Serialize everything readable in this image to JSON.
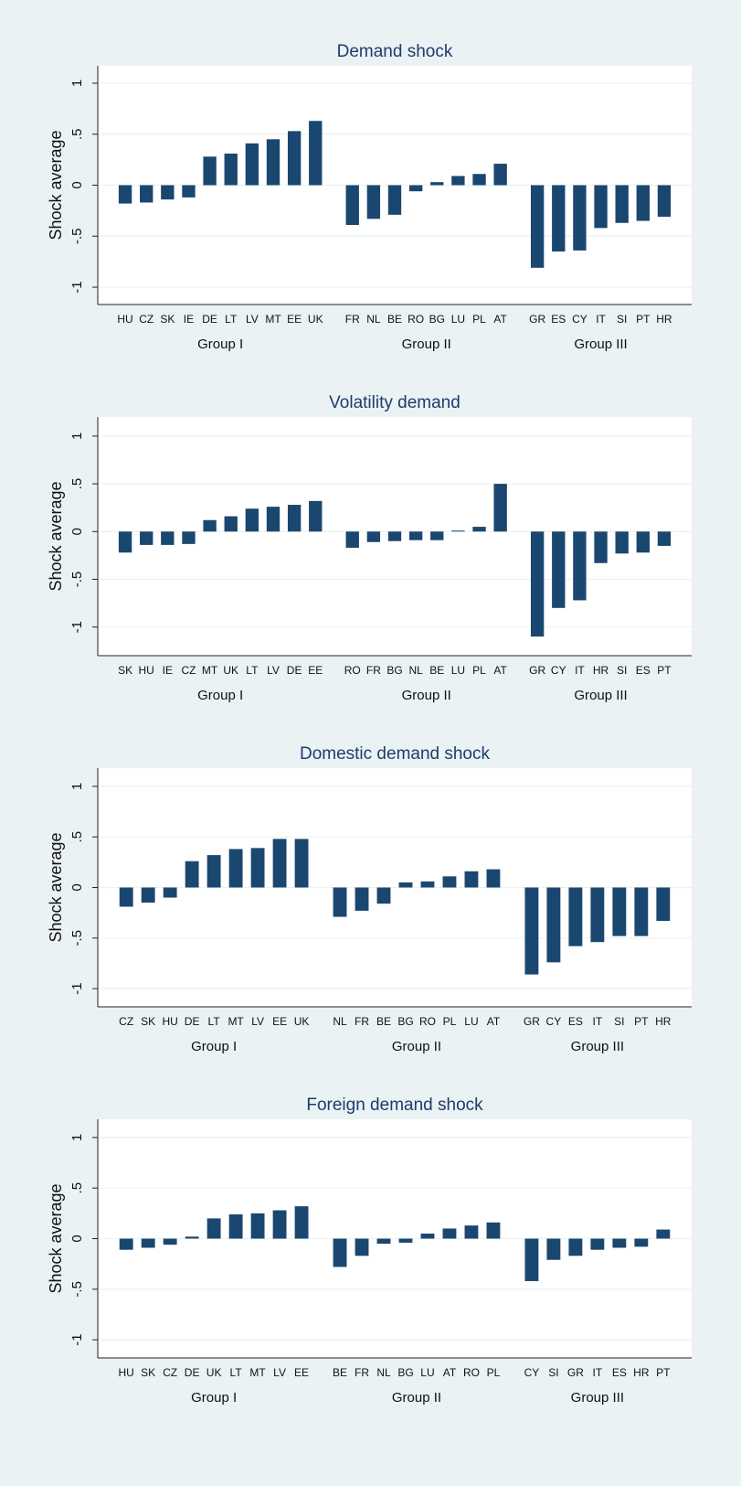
{
  "chart_data": [
    {
      "type": "bar",
      "title": "Demand shock",
      "y_label": "Shock average",
      "color": "#1a476f",
      "grid": true,
      "ylim": [
        -1.17,
        1.17
      ],
      "yticks": [
        -1,
        {
          "value": -0.5,
          "label": "-.5"
        },
        0,
        {
          "value": 0.5,
          "label": ".5"
        },
        1
      ],
      "groups": [
        {
          "name": "Group I",
          "categories": [
            "HU",
            "CZ",
            "SK",
            "IE",
            "DE",
            "LT",
            "LV",
            "MT",
            "EE",
            "UK"
          ],
          "values": [
            -0.18,
            -0.17,
            -0.14,
            -0.12,
            0.28,
            0.31,
            0.41,
            0.45,
            0.53,
            0.63
          ]
        },
        {
          "name": "Group II",
          "categories": [
            "FR",
            "NL",
            "BE",
            "RO",
            "BG",
            "LU",
            "PL",
            "AT"
          ],
          "values": [
            -0.39,
            -0.33,
            -0.29,
            -0.06,
            0.03,
            0.09,
            0.11,
            0.21
          ]
        },
        {
          "name": "Group III",
          "categories": [
            "GR",
            "ES",
            "CY",
            "IT",
            "SI",
            "PT",
            "HR"
          ],
          "values": [
            -0.81,
            -0.65,
            -0.64,
            -0.42,
            -0.37,
            -0.35,
            -0.31
          ]
        }
      ]
    },
    {
      "type": "bar",
      "title": "Volatility demand",
      "y_label": "Shock average",
      "color": "#1a476f",
      "grid": true,
      "ylim": [
        -1.3,
        1.2
      ],
      "yticks": [
        -1,
        {
          "value": -0.5,
          "label": "-.5"
        },
        0,
        {
          "value": 0.5,
          "label": ".5"
        },
        1
      ],
      "groups": [
        {
          "name": "Group I",
          "categories": [
            "SK",
            "HU",
            "IE",
            "CZ",
            "MT",
            "UK",
            "LT",
            "LV",
            "DE",
            "EE"
          ],
          "values": [
            -0.22,
            -0.14,
            -0.14,
            -0.13,
            0.12,
            0.16,
            0.24,
            0.26,
            0.28,
            0.32
          ]
        },
        {
          "name": "Group II",
          "categories": [
            "RO",
            "FR",
            "BG",
            "NL",
            "BE",
            "LU",
            "PL",
            "AT"
          ],
          "values": [
            -0.17,
            -0.11,
            -0.1,
            -0.09,
            -0.09,
            0.01,
            0.05,
            0.5
          ]
        },
        {
          "name": "Group III",
          "categories": [
            "GR",
            "CY",
            "IT",
            "HR",
            "SI",
            "ES",
            "PT"
          ],
          "values": [
            -1.1,
            -0.8,
            -0.72,
            -0.33,
            -0.23,
            -0.22,
            -0.15
          ]
        }
      ]
    },
    {
      "type": "bar",
      "title": "Domestic demand shock",
      "y_label": "Shock average",
      "color": "#1a476f",
      "grid": true,
      "ylim": [
        -1.18,
        1.18
      ],
      "yticks": [
        -1,
        {
          "value": -0.5,
          "label": "-.5"
        },
        0,
        {
          "value": 0.5,
          "label": ".5"
        },
        1
      ],
      "groups": [
        {
          "name": "Group I",
          "categories": [
            "CZ",
            "SK",
            "HU",
            "DE",
            "LT",
            "MT",
            "LV",
            "EE",
            "UK"
          ],
          "values": [
            -0.19,
            -0.15,
            -0.1,
            0.26,
            0.32,
            0.38,
            0.39,
            0.48,
            0.48
          ]
        },
        {
          "name": "Group II",
          "categories": [
            "NL",
            "FR",
            "BE",
            "BG",
            "RO",
            "PL",
            "LU",
            "AT"
          ],
          "values": [
            -0.29,
            -0.23,
            -0.16,
            0.05,
            0.06,
            0.11,
            0.16,
            0.18
          ]
        },
        {
          "name": "Group III",
          "categories": [
            "GR",
            "CY",
            "ES",
            "IT",
            "SI",
            "PT",
            "HR"
          ],
          "values": [
            -0.86,
            -0.74,
            -0.58,
            -0.54,
            -0.48,
            -0.48,
            -0.33
          ]
        }
      ]
    },
    {
      "type": "bar",
      "title": "Foreign demand shock",
      "y_label": "Shock average",
      "color": "#1a476f",
      "grid": true,
      "ylim": [
        -1.18,
        1.18
      ],
      "yticks": [
        -1,
        {
          "value": -0.5,
          "label": "-.5"
        },
        0,
        {
          "value": 0.5,
          "label": ".5"
        },
        1
      ],
      "groups": [
        {
          "name": "Group I",
          "categories": [
            "HU",
            "SK",
            "CZ",
            "DE",
            "UK",
            "LT",
            "MT",
            "LV",
            "EE"
          ],
          "values": [
            -0.11,
            -0.09,
            -0.06,
            0.02,
            0.2,
            0.24,
            0.25,
            0.28,
            0.32
          ]
        },
        {
          "name": "Group II",
          "categories": [
            "BE",
            "FR",
            "NL",
            "BG",
            "LU",
            "AT",
            "RO",
            "PL"
          ],
          "values": [
            -0.28,
            -0.17,
            -0.05,
            -0.04,
            0.05,
            0.1,
            0.13,
            0.16
          ]
        },
        {
          "name": "Group III",
          "categories": [
            "CY",
            "SI",
            "GR",
            "IT",
            "ES",
            "HR",
            "PT"
          ],
          "values": [
            -0.42,
            -0.21,
            -0.17,
            -0.11,
            -0.09,
            -0.08,
            0.09
          ]
        }
      ]
    }
  ]
}
